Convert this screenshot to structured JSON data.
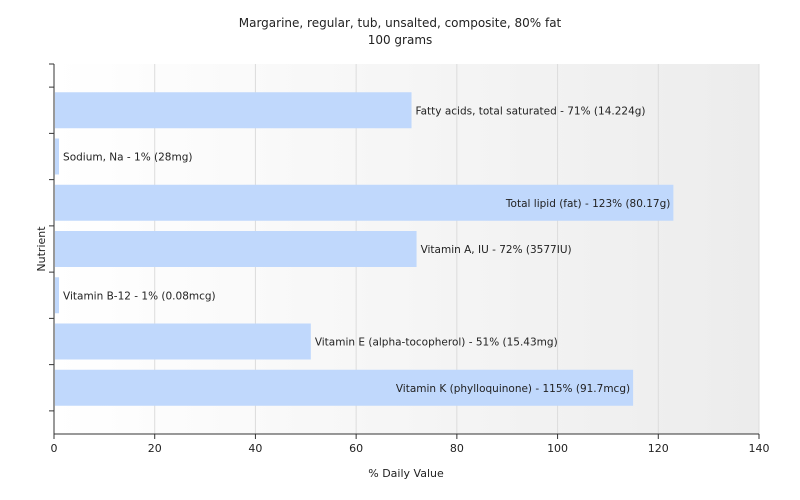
{
  "chart_data": {
    "type": "bar",
    "orientation": "horizontal",
    "title": "Margarine, regular, tub, unsalted, composite, 80% fat",
    "subtitle": "100 grams",
    "xlabel": "% Daily Value",
    "ylabel": "Nutrient",
    "xlim": [
      0,
      140
    ],
    "xticks": [
      0,
      20,
      40,
      60,
      80,
      100,
      120,
      140
    ],
    "grid": true,
    "bar_color": "#c0d8fc",
    "categories": [
      "Fatty acids, total saturated",
      "Sodium, Na",
      "Total lipid (fat)",
      "Vitamin A, IU",
      "Vitamin B-12",
      "Vitamin E (alpha-tocopherol)",
      "Vitamin K (phylloquinone)"
    ],
    "values": [
      71,
      1,
      123,
      72,
      1,
      51,
      115
    ],
    "labels": [
      "Fatty acids, total saturated - 71% (14.224g)",
      "Sodium, Na - 1% (28mg)",
      "Total lipid (fat) - 123% (80.17g)",
      "Vitamin A, IU - 72% (3577IU)",
      "Vitamin B-12 - 1% (0.08mcg)",
      "Vitamin E (alpha-tocopherol) - 51% (15.43mg)",
      "Vitamin K (phylloquinone) - 115% (91.7mcg)"
    ]
  }
}
